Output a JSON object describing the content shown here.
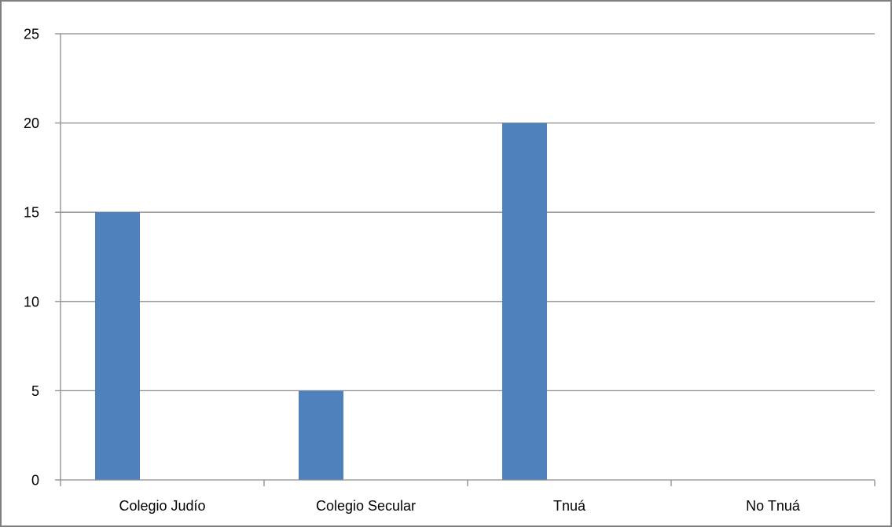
{
  "chart_data": {
    "type": "bar",
    "categories": [
      "Colegio Judío",
      "Colegio Secular",
      "Tnuá",
      "No Tnuá"
    ],
    "values": [
      15,
      5,
      20,
      0
    ],
    "title": "",
    "xlabel": "",
    "ylabel": "",
    "ylim": [
      0,
      25
    ],
    "yticks": [
      "0",
      "5",
      "10",
      "15",
      "20",
      "25"
    ],
    "grid": true,
    "legend": "none",
    "bar_color": "#4f81bd",
    "grid_color": "#8c8c8c",
    "frame_color": "#7f7f7f"
  }
}
